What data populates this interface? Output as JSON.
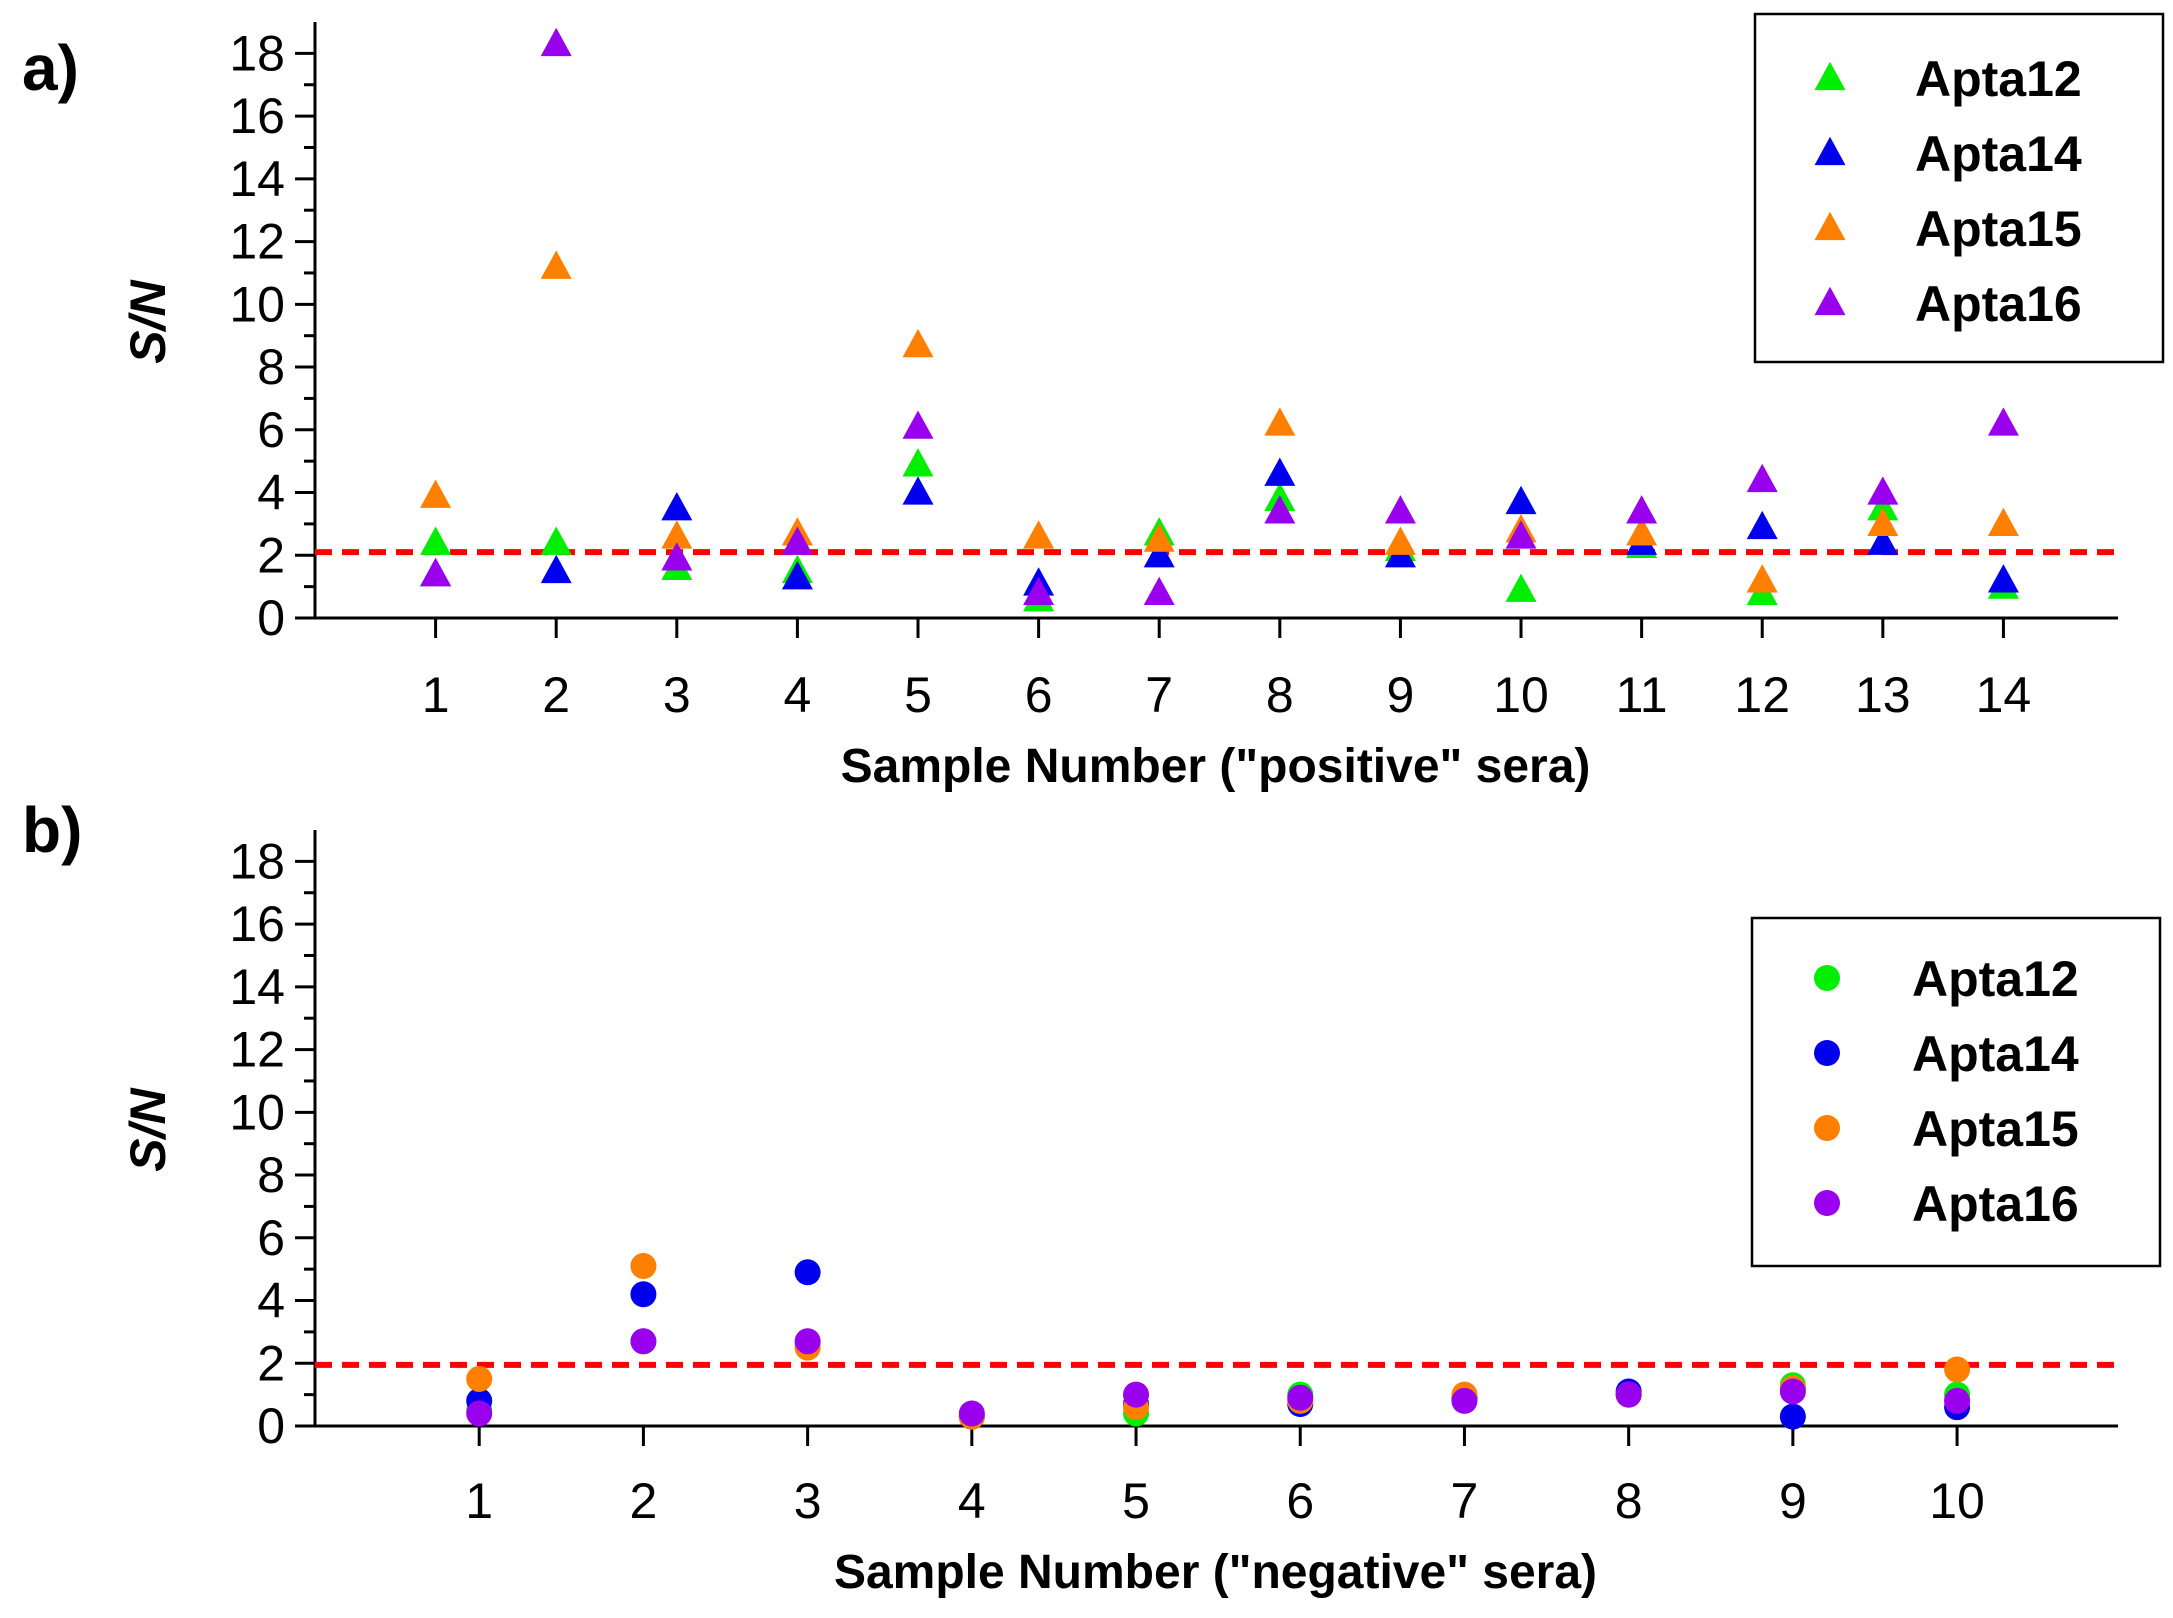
{
  "chart_data": [
    {
      "type": "scatter",
      "panel_label": "a)",
      "xlabel": "Sample Number (\"positive\" sera)",
      "ylabel": "S/N",
      "xlim": [
        0,
        14.95
      ],
      "ylim": [
        0,
        19
      ],
      "x_ticks": [
        1,
        2,
        3,
        4,
        5,
        6,
        7,
        8,
        9,
        10,
        11,
        12,
        13,
        14
      ],
      "y_ticks": [
        0,
        2,
        4,
        6,
        8,
        10,
        12,
        14,
        16,
        18
      ],
      "marker": "triangle",
      "threshold": 2.1,
      "legend_position": "top-right",
      "x": [
        1,
        2,
        3,
        4,
        5,
        6,
        7,
        8,
        9,
        10,
        11,
        12,
        13,
        14
      ],
      "series": [
        {
          "name": "Apta12",
          "color": "#00ee00",
          "values": [
            2.4,
            2.4,
            1.6,
            1.5,
            4.9,
            0.6,
            2.7,
            3.8,
            2.2,
            0.9,
            2.3,
            0.8,
            3.5,
            1.0
          ]
        },
        {
          "name": "Apta14",
          "color": "#0000ee",
          "values": [
            1.4,
            1.5,
            3.5,
            1.3,
            4.0,
            1.1,
            2.0,
            4.6,
            2.0,
            3.7,
            2.4,
            2.9,
            2.4,
            1.2
          ]
        },
        {
          "name": "Apta15",
          "color": "#ff7f00",
          "values": [
            3.9,
            11.2,
            2.6,
            2.7,
            8.7,
            2.6,
            2.5,
            6.2,
            2.4,
            2.8,
            2.7,
            1.2,
            3.0,
            3.0
          ]
        },
        {
          "name": "Apta16",
          "color": "#9900ee",
          "values": [
            1.4,
            18.3,
            1.9,
            2.4,
            6.1,
            0.8,
            0.8,
            3.4,
            3.4,
            2.6,
            3.4,
            4.4,
            4.0,
            6.2
          ]
        }
      ]
    },
    {
      "type": "scatter",
      "panel_label": "b)",
      "xlabel": "Sample Number (\"negative\" sera)",
      "ylabel": "S/N",
      "xlim": [
        0,
        10.98
      ],
      "ylim": [
        0,
        19
      ],
      "x_ticks": [
        1,
        2,
        3,
        4,
        5,
        6,
        7,
        8,
        9,
        10
      ],
      "y_ticks": [
        0,
        2,
        4,
        6,
        8,
        10,
        12,
        14,
        16,
        18
      ],
      "marker": "circle",
      "threshold": 1.95,
      "legend_position": "right",
      "x": [
        1,
        2,
        3,
        4,
        5,
        6,
        7,
        8,
        9,
        10
      ],
      "series": [
        {
          "name": "Apta12",
          "color": "#00ee00",
          "values": [
            0.5,
            2.7,
            2.6,
            0.3,
            0.4,
            1.0,
            0.9,
            1.0,
            1.3,
            1.0
          ]
        },
        {
          "name": "Apta14",
          "color": "#0000ee",
          "values": [
            0.8,
            4.2,
            4.9,
            0.3,
            0.7,
            0.7,
            0.9,
            1.1,
            0.3,
            0.6
          ]
        },
        {
          "name": "Apta15",
          "color": "#ff7f00",
          "values": [
            1.5,
            5.1,
            2.5,
            0.3,
            0.6,
            0.8,
            1.0,
            1.0,
            1.2,
            1.8
          ]
        },
        {
          "name": "Apta16",
          "color": "#9900ee",
          "values": [
            0.4,
            2.7,
            2.7,
            0.4,
            1.0,
            0.9,
            0.8,
            1.0,
            1.1,
            0.8
          ]
        }
      ]
    }
  ]
}
